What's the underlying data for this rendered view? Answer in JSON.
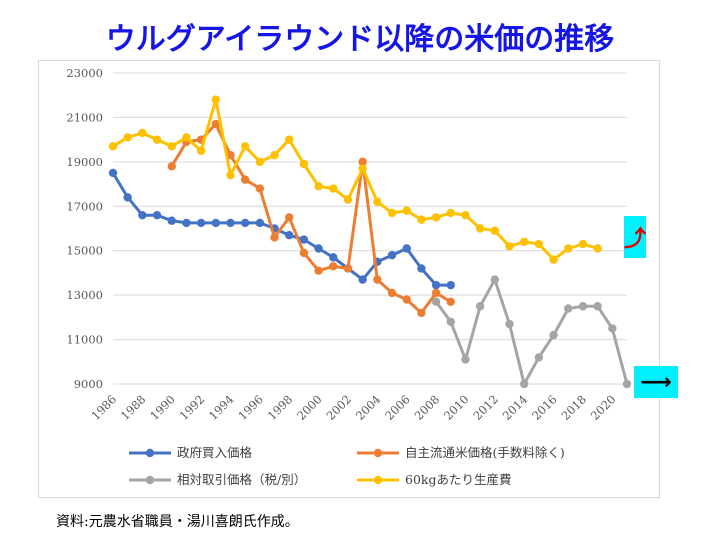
{
  "title": "ウルグアイラウンド以降の米価の推移",
  "source_note": "資料:元農水省職員・湯川喜朗氏作成。",
  "colors": {
    "title": "#1515e6",
    "gov": "#4472c4",
    "free": "#ed7d31",
    "rel": "#a5a5a5",
    "cost": "#ffc000",
    "arrow_box": "#00f0ff",
    "arrow_up": "#e00000",
    "arrow_right": "#000000",
    "grid": "#d9d9d9"
  },
  "indicators": {
    "up_icon": "curved-up-arrow-icon",
    "right_icon": "right-arrow-icon",
    "up_glyph": "⤴",
    "right_glyph": "⟶"
  },
  "chart_data": {
    "type": "line",
    "y_ticks": [
      "23000",
      "21000",
      "19000",
      "17000",
      "15000",
      "13000",
      "11000",
      "9000"
    ],
    "x_ticks": [
      "1986",
      "1988",
      "1990",
      "1992",
      "1994",
      "1996",
      "1998",
      "2000",
      "2002",
      "2004",
      "2006",
      "2008",
      "2010",
      "2012",
      "2014",
      "2016",
      "2018",
      "2020"
    ],
    "ylim": [
      9000,
      23000
    ],
    "xlim": [
      1986,
      2021
    ],
    "grid": true,
    "legend_position": "bottom",
    "series": [
      {
        "name": "政府買入価格",
        "color_key": "gov",
        "points": [
          [
            1986,
            18500
          ],
          [
            1987,
            17400
          ],
          [
            1988,
            16600
          ],
          [
            1989,
            16600
          ],
          [
            1990,
            16350
          ],
          [
            1991,
            16250
          ],
          [
            1992,
            16250
          ],
          [
            1993,
            16250
          ],
          [
            1994,
            16250
          ],
          [
            1995,
            16250
          ],
          [
            1996,
            16250
          ],
          [
            1997,
            16000
          ],
          [
            1998,
            15700
          ],
          [
            1999,
            15500
          ],
          [
            2000,
            15100
          ],
          [
            2001,
            14700
          ],
          [
            2002,
            14200
          ],
          [
            2003,
            13700
          ],
          [
            2004,
            14500
          ],
          [
            2005,
            14800
          ],
          [
            2006,
            15100
          ],
          [
            2007,
            14200
          ],
          [
            2008,
            13450
          ],
          [
            2009,
            13450
          ]
        ]
      },
      {
        "name": "自主流通米価格(手数料除く)",
        "color_key": "free",
        "points": [
          [
            1990,
            18800
          ],
          [
            1991,
            19900
          ],
          [
            1992,
            20000
          ],
          [
            1993,
            20700
          ],
          [
            1994,
            19300
          ],
          [
            1995,
            18200
          ],
          [
            1996,
            17800
          ],
          [
            1997,
            15600
          ],
          [
            1998,
            16500
          ],
          [
            1999,
            14900
          ],
          [
            2000,
            14100
          ],
          [
            2001,
            14300
          ],
          [
            2002,
            14200
          ],
          [
            2003,
            19000
          ],
          [
            2004,
            13700
          ],
          [
            2005,
            13100
          ],
          [
            2006,
            12800
          ],
          [
            2007,
            12200
          ],
          [
            2008,
            13100
          ],
          [
            2009,
            12700
          ]
        ]
      },
      {
        "name": "相対取引価格（税/別）",
        "color_key": "rel",
        "points": [
          [
            2008,
            12700
          ],
          [
            2009,
            11800
          ],
          [
            2010,
            10100
          ],
          [
            2011,
            12500
          ],
          [
            2012,
            13700
          ],
          [
            2013,
            11700
          ],
          [
            2014,
            9000
          ],
          [
            2015,
            10200
          ],
          [
            2016,
            11200
          ],
          [
            2017,
            12400
          ],
          [
            2018,
            12500
          ],
          [
            2019,
            12500
          ],
          [
            2020,
            11500
          ],
          [
            2021,
            9000
          ]
        ]
      },
      {
        "name": "60kgあたり生産費",
        "color_key": "cost",
        "points": [
          [
            1986,
            19700
          ],
          [
            1987,
            20100
          ],
          [
            1988,
            20300
          ],
          [
            1989,
            20000
          ],
          [
            1990,
            19700
          ],
          [
            1991,
            20100
          ],
          [
            1992,
            19500
          ],
          [
            1993,
            21800
          ],
          [
            1994,
            18400
          ],
          [
            1995,
            19700
          ],
          [
            1996,
            19000
          ],
          [
            1997,
            19300
          ],
          [
            1998,
            20000
          ],
          [
            1999,
            18900
          ],
          [
            2000,
            17900
          ],
          [
            2001,
            17800
          ],
          [
            2002,
            17300
          ],
          [
            2003,
            18700
          ],
          [
            2004,
            17200
          ],
          [
            2005,
            16700
          ],
          [
            2006,
            16800
          ],
          [
            2007,
            16400
          ],
          [
            2008,
            16500
          ],
          [
            2009,
            16700
          ],
          [
            2010,
            16600
          ],
          [
            2011,
            16000
          ],
          [
            2012,
            15900
          ],
          [
            2013,
            15200
          ],
          [
            2014,
            15400
          ],
          [
            2015,
            15300
          ],
          [
            2016,
            14600
          ],
          [
            2017,
            15100
          ],
          [
            2018,
            15300
          ],
          [
            2019,
            15100
          ]
        ]
      }
    ]
  }
}
